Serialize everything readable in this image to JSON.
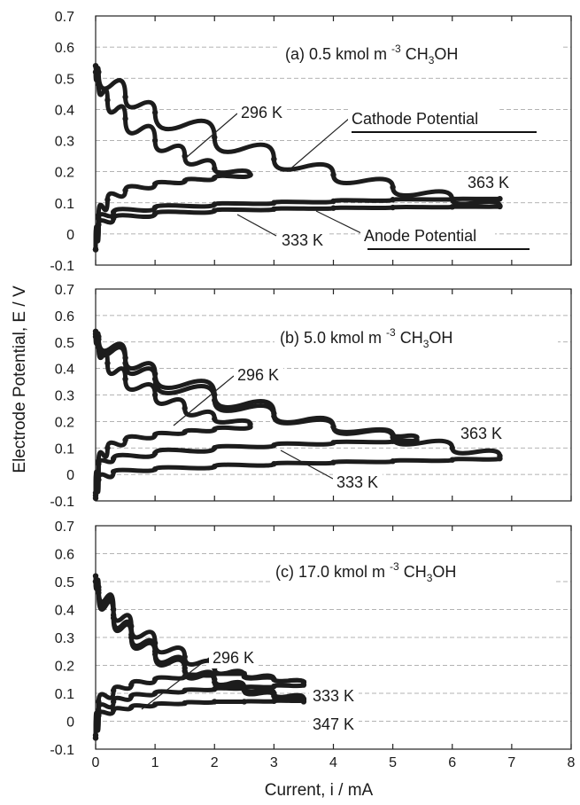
{
  "figure": {
    "xlabel": "Current, i / mA",
    "ylabel": "Electrode Potential, E / V"
  },
  "chart_data": [
    {
      "type": "scatter",
      "panel_label": "(a) 0.5 kmol m",
      "panel_sup": "-3",
      "panel_species": "CH",
      "panel_sub": "3",
      "panel_tail": "OH",
      "x_ticks": [
        "0",
        "1",
        "2",
        "3",
        "4",
        "5",
        "6",
        "7",
        "8"
      ],
      "y_ticks": [
        "-0.1",
        "0",
        "0.1",
        "0.2",
        "0.3",
        "0.4",
        "0.5",
        "0.6",
        "0.7"
      ],
      "xlim": [
        0,
        8
      ],
      "ylim": [
        -0.1,
        0.7
      ],
      "grid": "horizontal",
      "series": [
        {
          "name": "296 K",
          "kind": "cathode",
          "x": [
            0,
            0.05,
            0.2,
            0.5,
            1.0,
            1.5,
            2.0,
            2.6
          ],
          "y": [
            0.52,
            0.48,
            0.43,
            0.37,
            0.3,
            0.25,
            0.21,
            0.19
          ]
        },
        {
          "name": "296 K",
          "kind": "anode",
          "x": [
            0,
            0.05,
            0.2,
            0.5,
            1.0,
            1.5,
            2.0,
            2.6
          ],
          "y": [
            -0.05,
            0.06,
            0.11,
            0.14,
            0.16,
            0.17,
            0.18,
            0.19
          ]
        },
        {
          "name": "333 K",
          "kind": "anode",
          "x": [
            0,
            0.05,
            0.3,
            1.0,
            2.0,
            3.0,
            4.0,
            5.0,
            6.0,
            6.8
          ],
          "y": [
            -0.05,
            0.03,
            0.05,
            0.065,
            0.075,
            0.08,
            0.083,
            0.085,
            0.087,
            0.088
          ]
        },
        {
          "name": "363 K",
          "kind": "cathode",
          "x": [
            0,
            0.05,
            0.5,
            1.0,
            2.0,
            3.0,
            4.0,
            5.0,
            6.0,
            6.8
          ],
          "y": [
            0.54,
            0.52,
            0.44,
            0.39,
            0.31,
            0.24,
            0.19,
            0.15,
            0.11,
            0.09
          ]
        },
        {
          "name": "363 K",
          "kind": "anode",
          "x": [
            0,
            0.05,
            0.3,
            1.0,
            2.0,
            3.0,
            4.0,
            5.0,
            6.0,
            6.8
          ],
          "y": [
            -0.05,
            0.05,
            0.07,
            0.085,
            0.095,
            0.1,
            0.105,
            0.11,
            0.112,
            0.113
          ]
        }
      ],
      "annotations": [
        {
          "text": "296 K"
        },
        {
          "text": "Cathode Potential",
          "underline": true
        },
        {
          "text": "363 K"
        },
        {
          "text": "333 K"
        },
        {
          "text": "Anode Potential",
          "underline": true
        }
      ]
    },
    {
      "type": "scatter",
      "panel_label": "(b) 5.0 kmol m",
      "panel_sup": "-3",
      "panel_species": "CH",
      "panel_sub": "3",
      "panel_tail": "OH",
      "x_ticks": [
        "0",
        "1",
        "2",
        "3",
        "4",
        "5",
        "6",
        "7",
        "8"
      ],
      "y_ticks": [
        "-0.1",
        "0",
        "0.1",
        "0.2",
        "0.3",
        "0.4",
        "0.5",
        "0.6",
        "0.7"
      ],
      "xlim": [
        0,
        8
      ],
      "ylim": [
        -0.1,
        0.7
      ],
      "grid": "horizontal",
      "series": [
        {
          "name": "296 K",
          "kind": "cathode",
          "x": [
            0,
            0.05,
            0.2,
            0.5,
            1.0,
            1.5,
            2.0,
            2.6
          ],
          "y": [
            0.52,
            0.48,
            0.42,
            0.36,
            0.3,
            0.25,
            0.21,
            0.19
          ]
        },
        {
          "name": "296 K",
          "kind": "anode",
          "x": [
            0,
            0.05,
            0.2,
            0.5,
            1.0,
            1.5,
            2.0,
            2.6
          ],
          "y": [
            -0.07,
            0.05,
            0.1,
            0.13,
            0.15,
            0.16,
            0.17,
            0.18
          ]
        },
        {
          "name": "333 K",
          "kind": "cathode",
          "x": [
            0,
            0.05,
            0.5,
            1.0,
            2.0,
            3.0,
            4.0,
            5.0,
            5.4
          ],
          "y": [
            0.53,
            0.51,
            0.42,
            0.36,
            0.28,
            0.22,
            0.18,
            0.15,
            0.14
          ]
        },
        {
          "name": "333 K",
          "kind": "anode",
          "x": [
            0,
            0.05,
            0.3,
            1.0,
            2.0,
            3.0,
            4.0,
            5.0,
            5.4
          ],
          "y": [
            -0.08,
            0.04,
            0.06,
            0.08,
            0.1,
            0.11,
            0.12,
            0.125,
            0.13
          ]
        },
        {
          "name": "363 K",
          "kind": "cathode",
          "x": [
            0,
            0.05,
            0.5,
            1.0,
            2.0,
            3.0,
            4.0,
            5.0,
            6.0,
            6.8
          ],
          "y": [
            0.54,
            0.52,
            0.44,
            0.38,
            0.3,
            0.23,
            0.18,
            0.14,
            0.1,
            0.07
          ]
        },
        {
          "name": "363 K",
          "kind": "anode",
          "x": [
            0,
            0.05,
            0.3,
            1.0,
            2.0,
            3.0,
            4.0,
            5.0,
            6.0,
            6.8
          ],
          "y": [
            -0.09,
            -0.02,
            0.01,
            0.02,
            0.03,
            0.04,
            0.045,
            0.05,
            0.055,
            0.06
          ]
        }
      ],
      "annotations": [
        {
          "text": "296 K"
        },
        {
          "text": "363 K"
        },
        {
          "text": "333 K"
        }
      ]
    },
    {
      "type": "scatter",
      "panel_label": "(c) 17.0 kmol m",
      "panel_sup": "-3",
      "panel_species": "CH",
      "panel_sub": "3",
      "panel_tail": "OH",
      "x_ticks": [
        "0",
        "1",
        "2",
        "3",
        "4",
        "5",
        "6",
        "7",
        "8"
      ],
      "y_ticks": [
        "-0.1",
        "0",
        "0.1",
        "0.2",
        "0.3",
        "0.4",
        "0.5",
        "0.6",
        "0.7"
      ],
      "xlim": [
        0,
        8
      ],
      "ylim": [
        -0.1,
        0.7
      ],
      "grid": "horizontal",
      "series": [
        {
          "name": "296 K",
          "kind": "cathode",
          "x": [
            0,
            0.05,
            0.3,
            0.6,
            1.0,
            1.5,
            2.0,
            2.5,
            3.0,
            3.5
          ],
          "y": [
            0.52,
            0.48,
            0.4,
            0.34,
            0.28,
            0.23,
            0.19,
            0.16,
            0.15,
            0.14
          ]
        },
        {
          "name": "296 K",
          "kind": "anode",
          "x": [
            0,
            0.05,
            0.3,
            0.6,
            1.0,
            1.5,
            2.0,
            2.5,
            3.0,
            3.5
          ],
          "y": [
            -0.05,
            0.07,
            0.11,
            0.13,
            0.15,
            0.16,
            0.17,
            0.17,
            0.15,
            0.14
          ]
        },
        {
          "name": "333 K",
          "kind": "cathode",
          "x": [
            0,
            0.05,
            0.3,
            0.6,
            1.0,
            1.5,
            2.0,
            2.5,
            3.0,
            3.5
          ],
          "y": [
            0.5,
            0.47,
            0.38,
            0.31,
            0.25,
            0.19,
            0.15,
            0.12,
            0.1,
            0.08
          ]
        },
        {
          "name": "333 K",
          "kind": "anode",
          "x": [
            0,
            0.05,
            0.3,
            0.6,
            1.0,
            1.5,
            2.0,
            2.5,
            3.0,
            3.5
          ],
          "y": [
            -0.06,
            0.04,
            0.07,
            0.09,
            0.1,
            0.11,
            0.115,
            0.12,
            0.125,
            0.13
          ]
        },
        {
          "name": "347 K",
          "kind": "cathode",
          "x": [
            0,
            0.05,
            0.3,
            0.6,
            1.0,
            1.5,
            2.0,
            2.5,
            3.0,
            3.5
          ],
          "y": [
            0.5,
            0.46,
            0.37,
            0.3,
            0.24,
            0.18,
            0.14,
            0.11,
            0.09,
            0.07
          ]
        },
        {
          "name": "347 K",
          "kind": "anode",
          "x": [
            0,
            0.05,
            0.3,
            0.6,
            1.0,
            1.5,
            2.0,
            2.5,
            3.0,
            3.5
          ],
          "y": [
            -0.06,
            0.02,
            0.04,
            0.05,
            0.06,
            0.065,
            0.07,
            0.07,
            0.072,
            0.075
          ]
        }
      ],
      "annotations": [
        {
          "text": "296 K"
        },
        {
          "text": "333 K"
        },
        {
          "text": "347 K"
        }
      ]
    }
  ]
}
